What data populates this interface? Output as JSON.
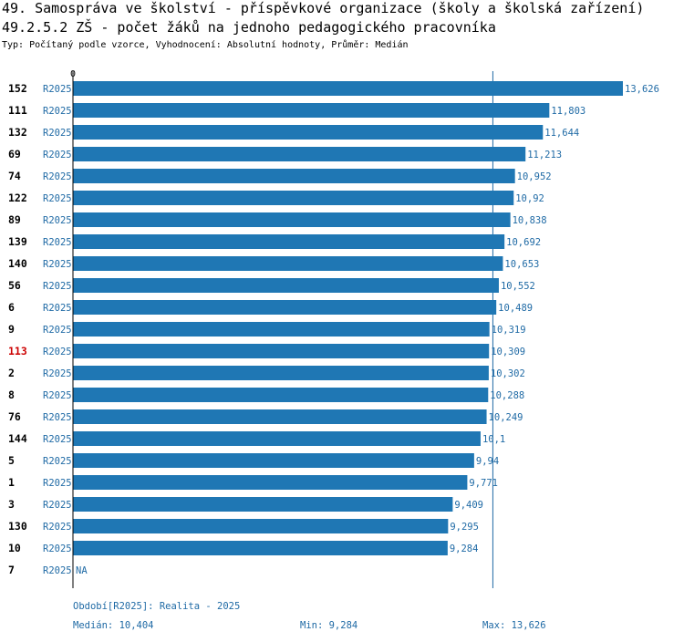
{
  "title": "49. Samospráva ve školství - příspěvkové organizace (školy a školská zařízení)",
  "subtitle": "49.2.5.2 ZŠ - počet žáků na jednoho pedagogického pracovníka",
  "info": "Typ: Počítaný podle vzorce, Vyhodnocení: Absolutní hodnoty, Průměr: Medián",
  "colors": {
    "bar": "#1f77b4",
    "text_blue": "#1f6aa5",
    "highlight": "#cc0000"
  },
  "chart_data": {
    "type": "bar",
    "orientation": "horizontal",
    "x_tick_label": "0",
    "xlim": [
      0,
      13.626
    ],
    "median_line": 10.404,
    "highlight_category": "113",
    "series_label": "R2025",
    "categories": [
      "152",
      "111",
      "132",
      "69",
      "74",
      "122",
      "89",
      "139",
      "140",
      "56",
      "6",
      "9",
      "113",
      "2",
      "8",
      "76",
      "144",
      "5",
      "1",
      "3",
      "130",
      "10",
      "7"
    ],
    "values": [
      13.626,
      11.803,
      11.644,
      11.213,
      10.952,
      10.92,
      10.838,
      10.692,
      10.653,
      10.552,
      10.489,
      10.319,
      10.309,
      10.302,
      10.288,
      10.249,
      10.1,
      9.94,
      9.771,
      9.409,
      9.295,
      9.284,
      null
    ],
    "value_labels": [
      "13,626",
      "11,803",
      "11,644",
      "11,213",
      "10,952",
      "10,92",
      "10,838",
      "10,692",
      "10,653",
      "10,552",
      "10,489",
      "10,319",
      "10,309",
      "10,302",
      "10,288",
      "10,249",
      "10,1",
      "9,94",
      "9,771",
      "9,409",
      "9,295",
      "9,284",
      "NA"
    ]
  },
  "footer": {
    "period": "Období[R2025]: Realita - 2025",
    "median": "Medián: 10,404",
    "min": "Min: 9,284",
    "max": "Max: 13,626"
  }
}
